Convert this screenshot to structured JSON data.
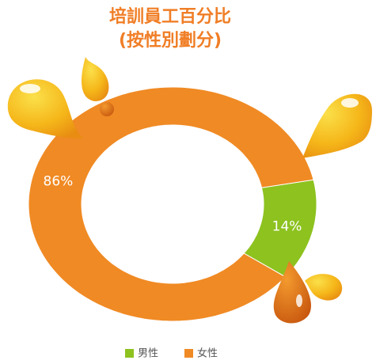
{
  "chart_data": {
    "type": "donut",
    "title": "培訓員工百分比",
    "subtitle": "(按性別劃分)",
    "categories": [
      "男性",
      "女性"
    ],
    "values": [
      14,
      86
    ],
    "value_labels": [
      "14%",
      "86%"
    ],
    "colors": [
      "#8dc21f",
      "#f08a24"
    ],
    "legend": "bottom"
  }
}
